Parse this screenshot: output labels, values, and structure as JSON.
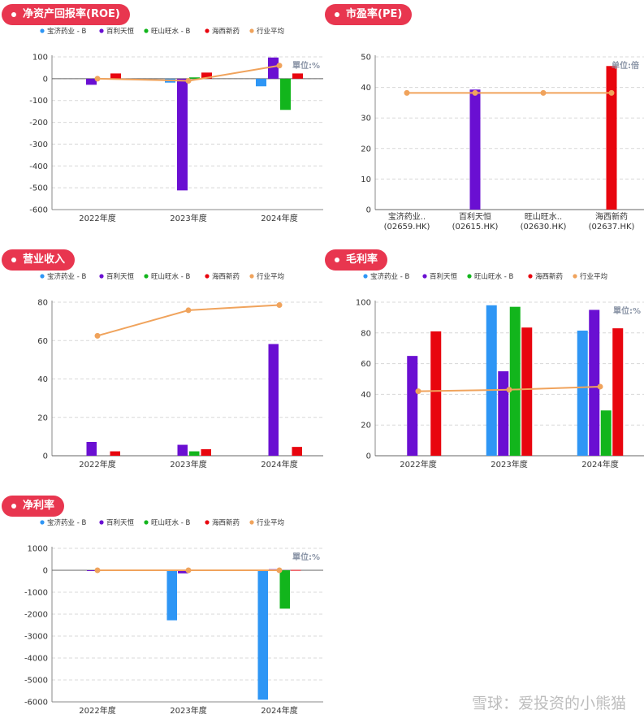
{
  "colors": {
    "pill_bg": "#e8364f",
    "series": [
      "#2e96f5",
      "#6a0fd2",
      "#12b51c",
      "#e8050e",
      "#f0a35c"
    ]
  },
  "legend": [
    "宝济药业 - B",
    "百利天恒",
    "旺山旺水 - B",
    "海西新药",
    "行业平均"
  ],
  "watermark": "雪球：爱投资的小熊猫",
  "chart_data": [
    {
      "id": "roe",
      "type": "bar",
      "title": "净资产回报率(ROE)",
      "unit": "單位:%",
      "categories": [
        "2022年度",
        "2023年度",
        "2024年度"
      ],
      "ylim": [
        -600,
        100
      ],
      "yticks": [
        100,
        0,
        -100,
        -200,
        -300,
        -400,
        -500,
        -600
      ],
      "series": [
        {
          "name": "宝济药业 - B",
          "values": [
            null,
            -18,
            -35
          ]
        },
        {
          "name": "百利天恒",
          "values": [
            -28,
            -512,
            97
          ]
        },
        {
          "name": "旺山旺水 - B",
          "values": [
            null,
            6,
            -143
          ]
        },
        {
          "name": "海西新药",
          "values": [
            24,
            28,
            24
          ]
        }
      ],
      "average": {
        "name": "行业平均",
        "values": [
          0,
          -10,
          60
        ]
      },
      "legend": true,
      "grid": true
    },
    {
      "id": "pe",
      "type": "bar",
      "title": "市盈率(PE)",
      "unit": "单位:倍",
      "categories": [
        [
          "宝济药业..",
          "(02659.HK)"
        ],
        [
          "百利天恒",
          "(02615.HK)"
        ],
        [
          "旺山旺水..",
          "(02630.HK)"
        ],
        [
          "海西新药",
          "(02637.HK)"
        ]
      ],
      "ylim": [
        0,
        50
      ],
      "yticks": [
        50,
        40,
        30,
        20,
        10,
        0
      ],
      "values": [
        null,
        39.3,
        null,
        47
      ],
      "bar_colors": [
        "#2e96f5",
        "#6a0fd2",
        "#12b51c",
        "#e8050e"
      ],
      "average": {
        "name": "行业平均",
        "value": 38.2
      },
      "legend": false,
      "grid": true
    },
    {
      "id": "revenue",
      "type": "bar",
      "title": "营业收入",
      "unit": "",
      "categories": [
        "2022年度",
        "2023年度",
        "2024年度"
      ],
      "ylim": [
        0,
        80
      ],
      "yticks": [
        80,
        60,
        40,
        20,
        0
      ],
      "series": [
        {
          "name": "宝济药业 - B",
          "values": [
            null,
            null,
            null
          ]
        },
        {
          "name": "百利天恒",
          "values": [
            7.2,
            5.7,
            58.2
          ]
        },
        {
          "name": "旺山旺水 - B",
          "values": [
            null,
            2.3,
            null
          ]
        },
        {
          "name": "海西新药",
          "values": [
            2.3,
            3.4,
            4.6
          ]
        }
      ],
      "average": {
        "name": "行业平均",
        "values": [
          62.5,
          75.8,
          78.5
        ]
      },
      "legend": true,
      "grid": true
    },
    {
      "id": "gross_margin",
      "type": "bar",
      "title": "毛利率",
      "unit": "單位:%",
      "categories": [
        "2022年度",
        "2023年度",
        "2024年度"
      ],
      "ylim": [
        0,
        100
      ],
      "yticks": [
        100,
        80,
        60,
        40,
        20,
        0
      ],
      "series": [
        {
          "name": "宝济药业 - B",
          "values": [
            null,
            98,
            81.5
          ]
        },
        {
          "name": "百利天恒",
          "values": [
            65,
            55,
            95
          ]
        },
        {
          "name": "旺山旺水 - B",
          "values": [
            null,
            97,
            29.5
          ]
        },
        {
          "name": "海西新药",
          "values": [
            81,
            83.5,
            83
          ]
        }
      ],
      "average": {
        "name": "行业平均",
        "values": [
          42,
          43,
          45
        ]
      },
      "legend": true,
      "grid": true
    },
    {
      "id": "net_margin",
      "type": "bar",
      "title": "净利率",
      "unit": "單位:%",
      "categories": [
        "2022年度",
        "2023年度",
        "2024年度"
      ],
      "ylim": [
        -6000,
        1000
      ],
      "yticks": [
        1000,
        0,
        -1000,
        -2000,
        -3000,
        -4000,
        -5000,
        -6000
      ],
      "series": [
        {
          "name": "宝济药业 - B",
          "values": [
            null,
            -2280,
            -5900
          ]
        },
        {
          "name": "百利天恒",
          "values": [
            -20,
            -140,
            50
          ]
        },
        {
          "name": "旺山旺水 - B",
          "values": [
            null,
            null,
            -1750
          ]
        },
        {
          "name": "海西新药",
          "values": [
            5,
            10,
            15
          ]
        }
      ],
      "average": {
        "name": "行业平均",
        "values": [
          0,
          0,
          0
        ]
      },
      "legend": true,
      "grid": true
    }
  ]
}
